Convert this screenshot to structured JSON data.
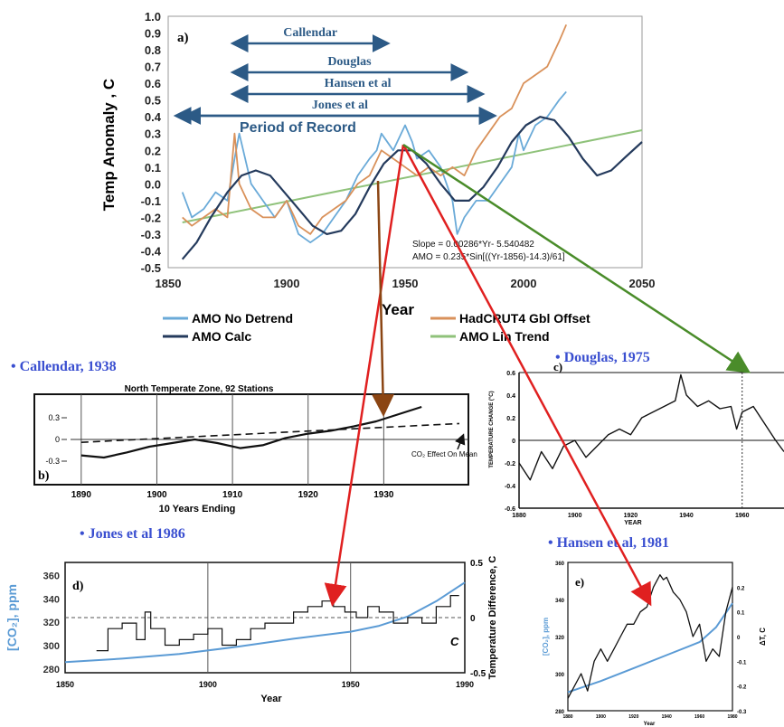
{
  "colors": {
    "amo_no_detrend": "#6aaad8",
    "amo_calc": "#243a5c",
    "hadcrut": "#d9915a",
    "lin_trend": "#8fc27a",
    "arrow_red": "#e02020",
    "arrow_brown": "#8b4513",
    "arrow_green": "#4a8c2a",
    "period_arrow": "#2c5a86",
    "co2_blue": "#5b9bd5",
    "title_blue": "#3a4fd0"
  },
  "chart_data": [
    {
      "id": "a",
      "type": "line",
      "panel_label": "a)",
      "xlabel": "Year",
      "ylabel": "Temp Anomaly , C",
      "xlim": [
        1850,
        2050
      ],
      "ylim": [
        -0.5,
        1.0
      ],
      "x_ticks": [
        "1850",
        "1900",
        "1950",
        "2000",
        "2050"
      ],
      "y_ticks": [
        "1.0",
        "0.9",
        "0.8",
        "0.7",
        "0.6",
        "0.5",
        "0.4",
        "0.3",
        "0.2",
        "0.1",
        "0.0",
        "-0.1",
        "-0.2",
        "-0.3",
        "-0.4",
        "-0.5"
      ],
      "periods": [
        {
          "label": "Callendar",
          "start": 1880,
          "end": 1940
        },
        {
          "label": "Douglas",
          "start": 1880,
          "end": 1973
        },
        {
          "label": "Hansen et al",
          "start": 1880,
          "end": 1980
        },
        {
          "label": "Jones et al",
          "start": 1860,
          "end": 1985
        },
        {
          "label": "Period of Record",
          "start": 1856,
          "end": 1985
        }
      ],
      "annotations": [
        "Slope = 0.00286*Yr- 5.540482",
        "AMO = 0.235*Sin[((Yr-1856)-14.3)/61]"
      ],
      "legend": [
        "AMO No Detrend",
        "HadCRUT4 Gbl Offset",
        "AMO Calc",
        "AMO Lin Trend"
      ],
      "series": [
        {
          "name": "AMO No Detrend",
          "x": [
            1856,
            1860,
            1865,
            1870,
            1875,
            1878,
            1880,
            1885,
            1890,
            1895,
            1900,
            1905,
            1910,
            1915,
            1920,
            1925,
            1930,
            1935,
            1938,
            1940,
            1945,
            1950,
            1953,
            1955,
            1960,
            1965,
            1970,
            1972,
            1975,
            1980,
            1985,
            1990,
            1995,
            1998,
            2000,
            2005,
            2010,
            2015,
            2018
          ],
          "y": [
            -0.05,
            -0.2,
            -0.15,
            -0.05,
            -0.1,
            0.15,
            0.3,
            0.0,
            -0.1,
            -0.2,
            -0.1,
            -0.3,
            -0.35,
            -0.3,
            -0.2,
            -0.1,
            0.05,
            0.15,
            0.2,
            0.3,
            0.2,
            0.35,
            0.25,
            0.15,
            0.2,
            0.1,
            -0.1,
            -0.3,
            -0.2,
            -0.1,
            -0.1,
            0.0,
            0.1,
            0.3,
            0.2,
            0.35,
            0.4,
            0.5,
            0.55
          ]
        },
        {
          "name": "HadCRUT4 Gbl Offset",
          "x": [
            1856,
            1860,
            1865,
            1870,
            1875,
            1878,
            1880,
            1885,
            1890,
            1895,
            1900,
            1905,
            1910,
            1915,
            1920,
            1925,
            1930,
            1935,
            1940,
            1945,
            1950,
            1955,
            1960,
            1965,
            1970,
            1975,
            1980,
            1985,
            1990,
            1995,
            2000,
            2005,
            2010,
            2015,
            2018
          ],
          "y": [
            -0.2,
            -0.25,
            -0.2,
            -0.15,
            -0.2,
            0.3,
            0.0,
            -0.15,
            -0.2,
            -0.2,
            -0.1,
            -0.25,
            -0.3,
            -0.2,
            -0.15,
            -0.1,
            0.0,
            0.05,
            0.2,
            0.15,
            0.1,
            0.05,
            0.1,
            0.05,
            0.1,
            0.05,
            0.2,
            0.3,
            0.4,
            0.45,
            0.6,
            0.65,
            0.7,
            0.85,
            0.95
          ]
        },
        {
          "name": "AMO Calc",
          "x": [
            1856,
            1862,
            1868,
            1875,
            1881,
            1887,
            1893,
            1899,
            1905,
            1911,
            1917,
            1923,
            1929,
            1935,
            1941,
            1947,
            1953,
            1959,
            1965,
            1971,
            1977,
            1983,
            1989,
            1995,
            2001,
            2007,
            2013,
            2019,
            2025,
            2031,
            2037,
            2043,
            2050
          ],
          "y": [
            -0.45,
            -0.35,
            -0.2,
            -0.05,
            0.05,
            0.08,
            0.05,
            -0.05,
            -0.15,
            -0.25,
            -0.3,
            -0.28,
            -0.18,
            -0.02,
            0.12,
            0.2,
            0.2,
            0.12,
            0.0,
            -0.1,
            -0.1,
            -0.02,
            0.1,
            0.25,
            0.35,
            0.4,
            0.38,
            0.28,
            0.15,
            0.05,
            0.08,
            0.16,
            0.25
          ]
        },
        {
          "name": "AMO Lin Trend",
          "x": [
            1856,
            2050
          ],
          "y": [
            -0.23,
            0.32
          ]
        }
      ]
    },
    {
      "id": "b",
      "type": "line",
      "source_title": "• Callendar, 1938",
      "panel_label": "b)",
      "title": "North Temperate Zone, 92 Stations",
      "xlabel": "10 Years Ending",
      "xlim": [
        1885,
        1940
      ],
      "ylim": [
        -0.5,
        0.5
      ],
      "x_ticks": [
        "1890",
        "1900",
        "1910",
        "1920",
        "1930"
      ],
      "y_ticks": [
        "0.3",
        "0",
        "-0.3"
      ],
      "annotation": "CO₂ Effect On Mean",
      "series": [
        {
          "name": "Temperature",
          "x": [
            1890,
            1893,
            1896,
            1899,
            1902,
            1905,
            1908,
            1911,
            1914,
            1917,
            1920,
            1923,
            1926,
            1929,
            1932,
            1935
          ],
          "y": [
            -0.22,
            -0.25,
            -0.18,
            -0.1,
            -0.05,
            0.0,
            -0.05,
            -0.12,
            -0.08,
            0.02,
            0.08,
            0.12,
            0.18,
            0.25,
            0.35,
            0.45
          ]
        },
        {
          "name": "CO₂ Effect",
          "x": [
            1890,
            1940
          ],
          "y": [
            -0.04,
            0.22
          ]
        }
      ]
    },
    {
      "id": "c",
      "type": "line",
      "source_title": "• Douglas, 1975",
      "panel_label": "c)",
      "xlabel": "YEAR",
      "ylabel": "TEMPERATURE CHANGE (°C)",
      "xlim": [
        1880,
        1975
      ],
      "ylim": [
        -0.6,
        0.6
      ],
      "x_ticks": [
        "1880",
        "1900",
        "1920",
        "1940",
        "1960"
      ],
      "y_ticks": [
        "0.6",
        "0.4",
        "0.2",
        "0",
        "-0.2",
        "-0.4",
        "-0.6"
      ],
      "series": [
        {
          "name": "Temperature change",
          "x": [
            1880,
            1884,
            1888,
            1892,
            1896,
            1900,
            1904,
            1908,
            1912,
            1916,
            1920,
            1924,
            1928,
            1932,
            1936,
            1938,
            1940,
            1944,
            1948,
            1952,
            1956,
            1958,
            1960,
            1964,
            1968,
            1972,
            1975
          ],
          "y": [
            -0.2,
            -0.35,
            -0.1,
            -0.25,
            -0.05,
            0.0,
            -0.15,
            -0.05,
            0.05,
            0.1,
            0.05,
            0.2,
            0.25,
            0.3,
            0.35,
            0.58,
            0.4,
            0.3,
            0.35,
            0.28,
            0.3,
            0.1,
            0.25,
            0.3,
            0.15,
            0.0,
            -0.1
          ]
        }
      ]
    },
    {
      "id": "d",
      "type": "line",
      "source_title": "• Jones et al 1986",
      "panel_label": "d)",
      "xlabel": "Year",
      "ylabel_left": "[CO₂], ppm",
      "ylabel_right": "Temperature Difference, C",
      "xlim": [
        1850,
        1990
      ],
      "ylim_left": [
        280,
        365
      ],
      "ylim_right": [
        -0.5,
        0.5
      ],
      "x_ticks": [
        "1850",
        "1900",
        "1950",
        "1990"
      ],
      "y_ticks_left": [
        "360",
        "340",
        "320",
        "300",
        "280"
      ],
      "y_ticks_right": [
        "0.5",
        "0",
        "-0.5"
      ],
      "curve_label": "C",
      "series": [
        {
          "name": "Temperature",
          "x": [
            1861,
            1865,
            1870,
            1875,
            1878,
            1880,
            1885,
            1890,
            1895,
            1900,
            1905,
            1910,
            1915,
            1920,
            1925,
            1930,
            1935,
            1940,
            1944,
            1948,
            1952,
            1956,
            1960,
            1965,
            1970,
            1975,
            1980,
            1985
          ],
          "y": [
            -0.3,
            -0.1,
            -0.05,
            -0.2,
            0.05,
            -0.1,
            -0.25,
            -0.2,
            -0.15,
            -0.1,
            -0.25,
            -0.2,
            -0.1,
            -0.05,
            -0.05,
            0.05,
            0.1,
            0.15,
            0.1,
            0.05,
            0.0,
            0.1,
            0.05,
            -0.05,
            0.0,
            -0.05,
            0.1,
            0.2
          ]
        },
        {
          "name": "CO₂",
          "x": [
            1850,
            1870,
            1890,
            1910,
            1930,
            1950,
            1960,
            1970,
            1980,
            1990
          ],
          "y": [
            286,
            289,
            293,
            299,
            306,
            312,
            317,
            325,
            338,
            354
          ]
        }
      ]
    },
    {
      "id": "e",
      "type": "line",
      "source_title": "• Hansen et al, 1981",
      "panel_label": "e)",
      "xlabel": "Year",
      "ylabel_left": "[CO₂], ppm",
      "ylabel_right": "ΔT, C",
      "xlim": [
        1880,
        1980
      ],
      "ylim_left": [
        280,
        360
      ],
      "ylim_right": [
        -0.3,
        0.3
      ],
      "x_ticks": [
        "1880",
        "1900",
        "1920",
        "1940",
        "1960",
        "1980"
      ],
      "y_ticks_left": [
        "360",
        "340",
        "320",
        "300",
        "280"
      ],
      "y_ticks_right": [
        "0.2",
        "0.1",
        "0",
        "-0.1",
        "-0.2",
        "-0.3"
      ],
      "series": [
        {
          "name": "Temperature",
          "x": [
            1880,
            1884,
            1888,
            1892,
            1896,
            1900,
            1904,
            1908,
            1912,
            1916,
            1920,
            1924,
            1928,
            1932,
            1936,
            1938,
            1940,
            1944,
            1948,
            1952,
            1956,
            1960,
            1964,
            1968,
            1972,
            1976,
            1980
          ],
          "y": [
            -0.25,
            -0.2,
            -0.15,
            -0.22,
            -0.1,
            -0.05,
            -0.1,
            -0.05,
            0.0,
            0.05,
            0.05,
            0.1,
            0.12,
            0.2,
            0.25,
            0.23,
            0.24,
            0.18,
            0.15,
            0.1,
            0.0,
            0.05,
            -0.1,
            -0.05,
            -0.08,
            0.1,
            0.2
          ]
        },
        {
          "name": "CO₂",
          "x": [
            1880,
            1900,
            1920,
            1940,
            1960,
            1970,
            1980
          ],
          "y": [
            290,
            296,
            303,
            310,
            317,
            325,
            338
          ]
        }
      ]
    }
  ]
}
